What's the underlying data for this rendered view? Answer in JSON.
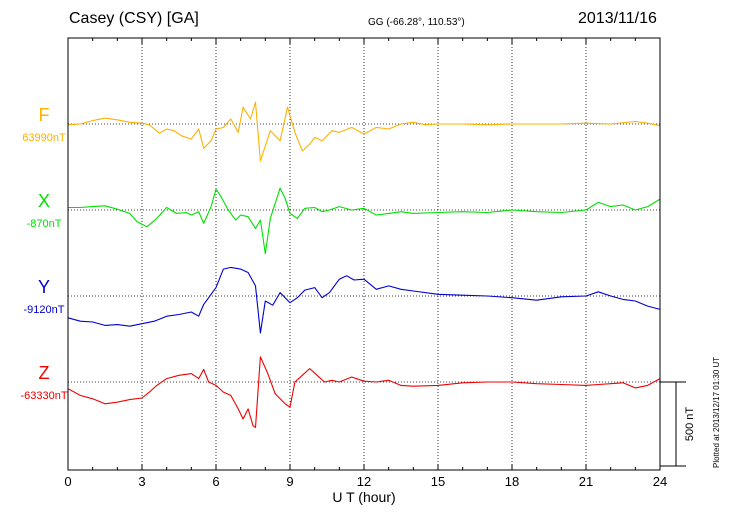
{
  "header": {
    "title": "Casey (CSY)  [GA]",
    "coords": "GG (-66.28°, 110.53°)",
    "date": "2013/11/16"
  },
  "footer": {
    "plotted": "Plotted at 2013/12/17 01:30 UT"
  },
  "chart_data": {
    "type": "line",
    "title": "Casey (CSY)  [GA]",
    "xlabel": "U T (hour)",
    "ylabel": "",
    "xlim": [
      0,
      24
    ],
    "x_ticks": [
      0,
      3,
      6,
      9,
      12,
      15,
      18,
      21,
      24
    ],
    "x_tick_labels": [
      "0",
      "3",
      "6",
      "9",
      "12",
      "15",
      "18",
      "21",
      "24"
    ],
    "grid": true,
    "scale_bar_label": "500 nT",
    "scale_bar_nT": 500,
    "series": [
      {
        "name": "F",
        "baseline_label": "63990nT",
        "baseline_nT": 63990,
        "color": "#ffb000",
        "points": [
          [
            0,
            -5
          ],
          [
            0.5,
            0
          ],
          [
            1,
            20
          ],
          [
            1.5,
            35
          ],
          [
            2,
            25
          ],
          [
            2.5,
            10
          ],
          [
            3,
            5
          ],
          [
            3.3,
            -5
          ],
          [
            3.7,
            -55
          ],
          [
            4,
            -30
          ],
          [
            4.3,
            -40
          ],
          [
            4.6,
            -70
          ],
          [
            5,
            -90
          ],
          [
            5.3,
            -30
          ],
          [
            5.5,
            -145
          ],
          [
            5.8,
            -100
          ],
          [
            6,
            -30
          ],
          [
            6.3,
            -20
          ],
          [
            6.6,
            30
          ],
          [
            6.9,
            -50
          ],
          [
            7.1,
            100
          ],
          [
            7.4,
            30
          ],
          [
            7.6,
            130
          ],
          [
            7.8,
            -220
          ],
          [
            8.2,
            -40
          ],
          [
            8.6,
            -100
          ],
          [
            8.9,
            100
          ],
          [
            9.2,
            -50
          ],
          [
            9.5,
            -160
          ],
          [
            9.8,
            -120
          ],
          [
            10,
            -80
          ],
          [
            10.3,
            -100
          ],
          [
            10.7,
            -40
          ],
          [
            11,
            -50
          ],
          [
            11.5,
            -20
          ],
          [
            12,
            -60
          ],
          [
            12.5,
            -20
          ],
          [
            13,
            -30
          ],
          [
            13.5,
            0
          ],
          [
            14,
            10
          ],
          [
            14.5,
            -5
          ],
          [
            15,
            0
          ],
          [
            16,
            0
          ],
          [
            17,
            -5
          ],
          [
            18,
            0
          ],
          [
            19,
            0
          ],
          [
            20,
            0
          ],
          [
            21,
            5
          ],
          [
            22,
            0
          ],
          [
            23,
            15
          ],
          [
            23.5,
            5
          ],
          [
            24,
            -10
          ]
        ]
      },
      {
        "name": "X",
        "baseline_label": "-870nT",
        "baseline_nT": -870,
        "color": "#00e000",
        "points": [
          [
            0,
            15
          ],
          [
            0.5,
            15
          ],
          [
            1,
            20
          ],
          [
            1.5,
            25
          ],
          [
            2,
            5
          ],
          [
            2.5,
            -20
          ],
          [
            2.8,
            -70
          ],
          [
            3.2,
            -100
          ],
          [
            3.6,
            -50
          ],
          [
            4,
            15
          ],
          [
            4.4,
            -20
          ],
          [
            4.8,
            -15
          ],
          [
            5,
            -30
          ],
          [
            5.3,
            -10
          ],
          [
            5.5,
            -80
          ],
          [
            5.8,
            20
          ],
          [
            6,
            125
          ],
          [
            6.2,
            80
          ],
          [
            6.5,
            0
          ],
          [
            6.8,
            -60
          ],
          [
            7,
            -30
          ],
          [
            7.3,
            -40
          ],
          [
            7.6,
            -110
          ],
          [
            7.8,
            -60
          ],
          [
            8,
            -260
          ],
          [
            8.2,
            -50
          ],
          [
            8.6,
            130
          ],
          [
            8.8,
            70
          ],
          [
            9,
            -20
          ],
          [
            9.3,
            -50
          ],
          [
            9.6,
            10
          ],
          [
            10,
            15
          ],
          [
            10.3,
            -10
          ],
          [
            10.6,
            0
          ],
          [
            11,
            20
          ],
          [
            11.5,
            0
          ],
          [
            12,
            10
          ],
          [
            12.5,
            -30
          ],
          [
            13,
            -20
          ],
          [
            13.5,
            -10
          ],
          [
            14,
            -20
          ],
          [
            15,
            -15
          ],
          [
            16,
            -10
          ],
          [
            17,
            -15
          ],
          [
            18,
            0
          ],
          [
            19,
            -10
          ],
          [
            20,
            -15
          ],
          [
            21,
            0
          ],
          [
            21.5,
            45
          ],
          [
            22,
            20
          ],
          [
            22.5,
            30
          ],
          [
            23,
            0
          ],
          [
            23.5,
            20
          ],
          [
            24,
            65
          ]
        ]
      },
      {
        "name": "Y",
        "baseline_label": "-9120nT",
        "baseline_nT": -9120,
        "color": "#0000d0",
        "points": [
          [
            0,
            -130
          ],
          [
            0.5,
            -150
          ],
          [
            1,
            -155
          ],
          [
            1.5,
            -175
          ],
          [
            2,
            -170
          ],
          [
            2.5,
            -180
          ],
          [
            3,
            -165
          ],
          [
            3.5,
            -150
          ],
          [
            4,
            -120
          ],
          [
            4.5,
            -110
          ],
          [
            5,
            -95
          ],
          [
            5.3,
            -120
          ],
          [
            5.5,
            -50
          ],
          [
            6,
            50
          ],
          [
            6.3,
            160
          ],
          [
            6.6,
            170
          ],
          [
            7,
            160
          ],
          [
            7.3,
            140
          ],
          [
            7.6,
            60
          ],
          [
            7.8,
            -220
          ],
          [
            8,
            -30
          ],
          [
            8.3,
            -55
          ],
          [
            8.6,
            20
          ],
          [
            9,
            -40
          ],
          [
            9.3,
            -10
          ],
          [
            9.6,
            35
          ],
          [
            10,
            50
          ],
          [
            10.3,
            -10
          ],
          [
            10.6,
            20
          ],
          [
            11,
            100
          ],
          [
            11.3,
            120
          ],
          [
            11.6,
            95
          ],
          [
            12,
            100
          ],
          [
            12.5,
            40
          ],
          [
            13,
            60
          ],
          [
            13.5,
            40
          ],
          [
            14,
            30
          ],
          [
            15,
            10
          ],
          [
            16,
            5
          ],
          [
            17,
            0
          ],
          [
            18,
            -10
          ],
          [
            19,
            -25
          ],
          [
            20,
            -5
          ],
          [
            21,
            0
          ],
          [
            21.5,
            25
          ],
          [
            22,
            0
          ],
          [
            22.5,
            -20
          ],
          [
            23,
            -30
          ],
          [
            23.5,
            -60
          ],
          [
            24,
            -80
          ]
        ]
      },
      {
        "name": "Z",
        "baseline_label": "-63330nT",
        "baseline_nT": -63330,
        "color": "#f00000",
        "points": [
          [
            0,
            -40
          ],
          [
            0.5,
            -80
          ],
          [
            1,
            -100
          ],
          [
            1.5,
            -130
          ],
          [
            2,
            -120
          ],
          [
            2.5,
            -105
          ],
          [
            3,
            -95
          ],
          [
            3.3,
            -60
          ],
          [
            3.6,
            -20
          ],
          [
            4,
            20
          ],
          [
            4.5,
            40
          ],
          [
            5,
            50
          ],
          [
            5.3,
            20
          ],
          [
            5.5,
            75
          ],
          [
            5.7,
            0
          ],
          [
            6,
            -20
          ],
          [
            6.3,
            -60
          ],
          [
            6.6,
            -80
          ],
          [
            6.9,
            -160
          ],
          [
            7.1,
            -220
          ],
          [
            7.3,
            -160
          ],
          [
            7.5,
            -260
          ],
          [
            7.6,
            -270
          ],
          [
            7.8,
            150
          ],
          [
            8.1,
            50
          ],
          [
            8.4,
            -70
          ],
          [
            8.8,
            -130
          ],
          [
            9,
            -150
          ],
          [
            9.2,
            0
          ],
          [
            9.5,
            40
          ],
          [
            9.8,
            80
          ],
          [
            10.1,
            40
          ],
          [
            10.4,
            0
          ],
          [
            10.7,
            10
          ],
          [
            11,
            0
          ],
          [
            11.5,
            30
          ],
          [
            12,
            5
          ],
          [
            12.5,
            0
          ],
          [
            13,
            10
          ],
          [
            13.5,
            -20
          ],
          [
            14,
            -25
          ],
          [
            15,
            -20
          ],
          [
            16,
            -5
          ],
          [
            17,
            0
          ],
          [
            18,
            0
          ],
          [
            19,
            -10
          ],
          [
            20,
            -15
          ],
          [
            21,
            -20
          ],
          [
            21.5,
            -15
          ],
          [
            22,
            -10
          ],
          [
            22.5,
            -5
          ],
          [
            23,
            -35
          ],
          [
            23.5,
            -20
          ],
          [
            24,
            20
          ]
        ]
      }
    ]
  }
}
